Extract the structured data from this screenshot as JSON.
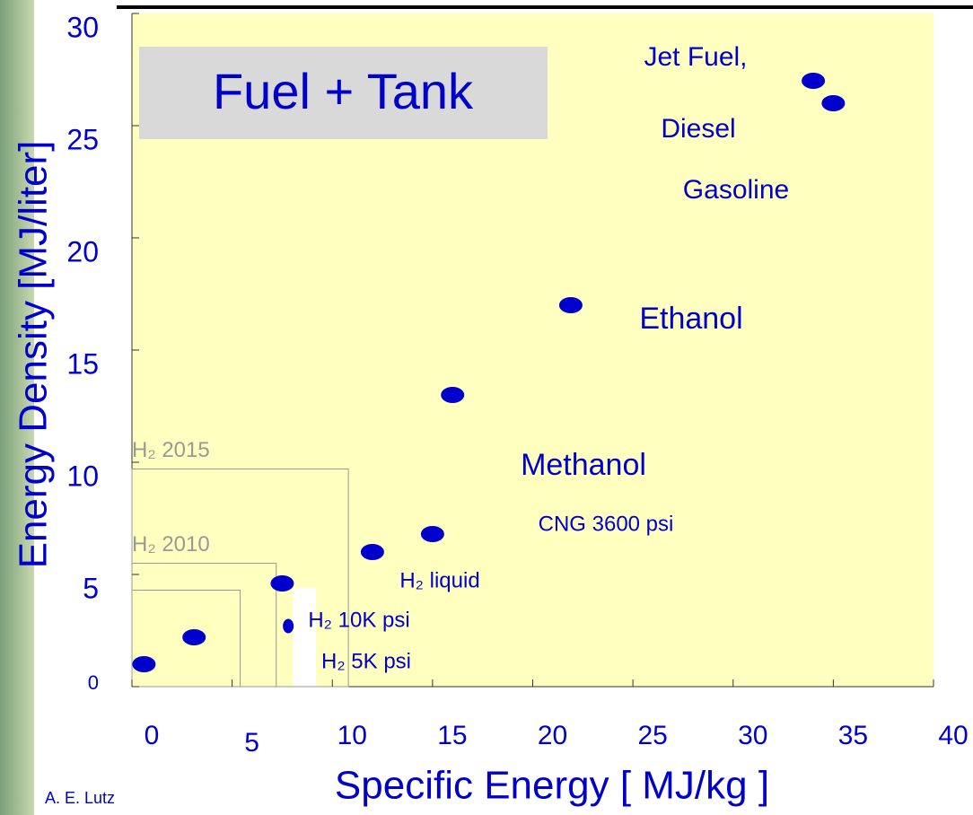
{
  "chart_data": {
    "type": "scatter",
    "inset_title": "Fuel + Tank",
    "x_label": "Specific Energy  [ MJ/kg ]",
    "y_label": "Energy Density  [MJ/liter]",
    "credit": "A. E. Lutz",
    "x": [
      0.6,
      3.1,
      7.5,
      7.8,
      12.0,
      15.0,
      16.0,
      21.9,
      34.0,
      35.0
    ],
    "values": [
      1.0,
      2.2,
      4.6,
      2.7,
      6.0,
      6.8,
      13.0,
      17.0,
      27.0,
      26.0
    ],
    "color": "#0000cc",
    "xlim": [
      0,
      40
    ],
    "ylim": [
      0,
      30
    ],
    "xticks": [
      0,
      5,
      10,
      15,
      20,
      25,
      30,
      35,
      40
    ],
    "yticks": [
      0,
      5,
      10,
      15,
      20,
      25,
      30
    ],
    "annotations": [
      "Jet Fuel,",
      "Diesel",
      "Gasoline",
      "Ethanol",
      "Methanol",
      "CNG 3600 psi",
      "H₂ liquid",
      "H₂ 10K psi",
      "H₂ 5K psi"
    ],
    "target_boxes": [
      {
        "label": "H₂  2015",
        "x": 10.8,
        "y": 9.7
      },
      {
        "label": "H₂  2010",
        "x": 7.2,
        "y": 5.5
      },
      {
        "x": 5.4,
        "y": 4.3
      }
    ]
  }
}
